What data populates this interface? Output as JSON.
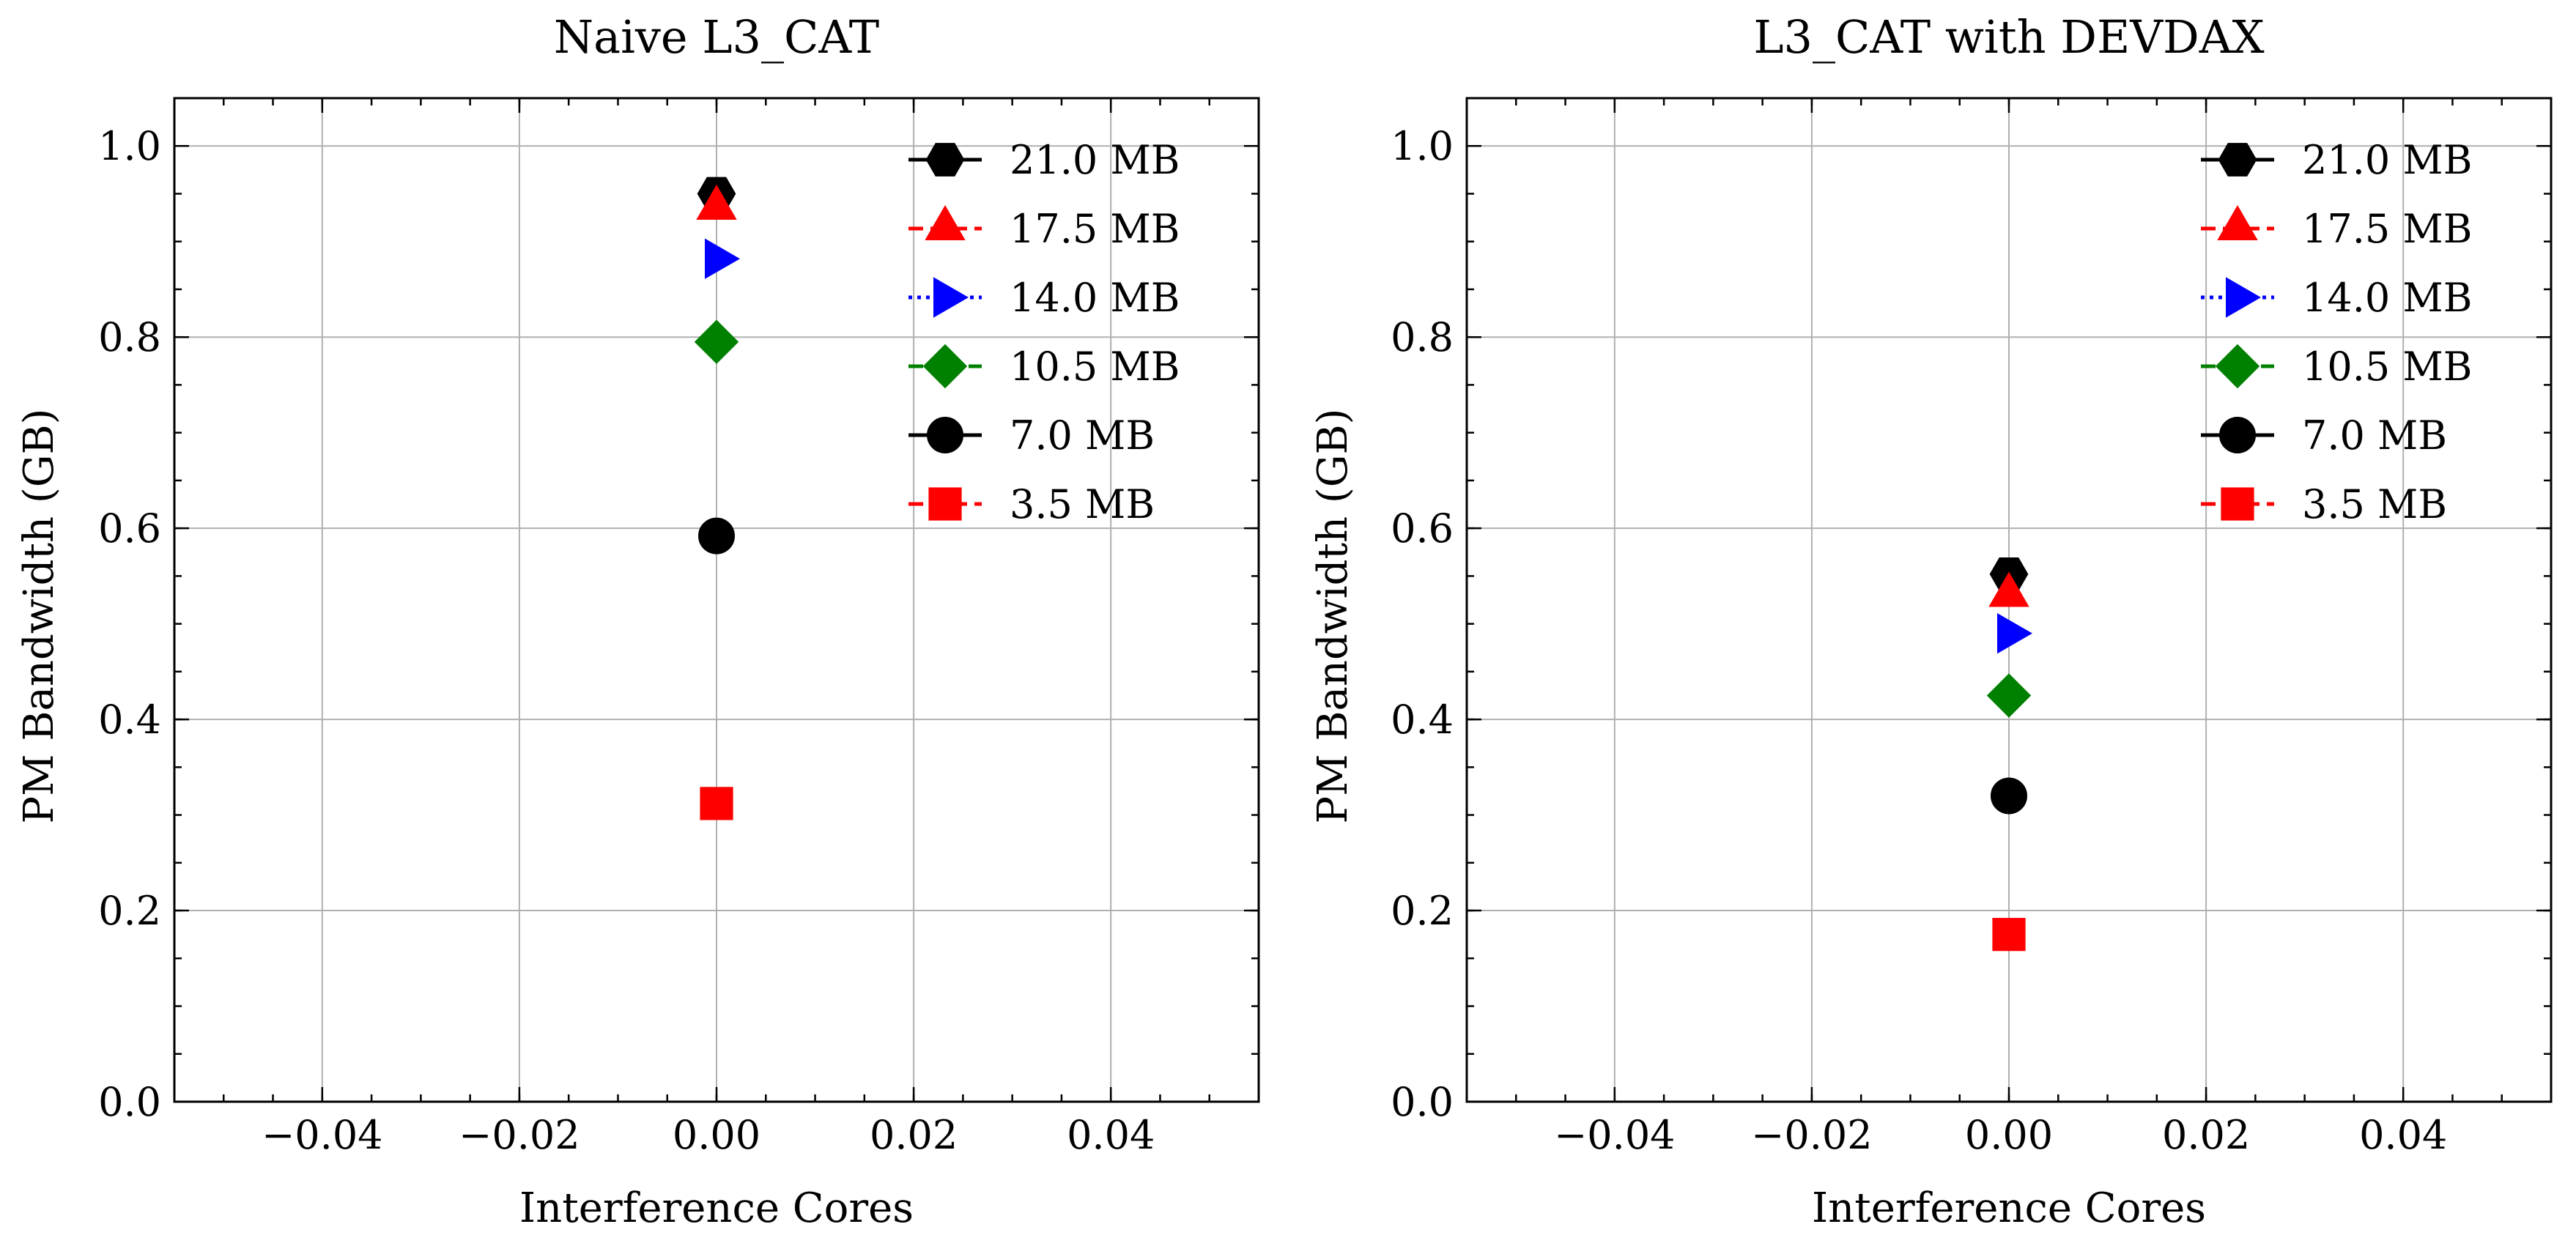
{
  "figure": {
    "panels": [
      {
        "title": "Naive L3_CAT"
      },
      {
        "title": "L3_CAT with DEVDAX"
      }
    ]
  },
  "chart_data": [
    {
      "type": "scatter",
      "title": "Naive L3_CAT",
      "xlabel": "Interference Cores",
      "ylabel": "PM Bandwidth (GB)",
      "xlim": [
        -0.055,
        0.055
      ],
      "ylim": [
        0.0,
        1.05
      ],
      "xticks": [
        -0.04,
        -0.02,
        0.0,
        0.02,
        0.04
      ],
      "xtick_labels": [
        "−0.04",
        "−0.02",
        "0.00",
        "0.02",
        "0.04"
      ],
      "yticks": [
        0.0,
        0.2,
        0.4,
        0.6,
        0.8,
        1.0
      ],
      "ytick_labels": [
        "0.0",
        "0.2",
        "0.4",
        "0.6",
        "0.8",
        "1.0"
      ],
      "grid": true,
      "legend_position": "top-right",
      "series": [
        {
          "name": "21.0 MB",
          "x": [
            0
          ],
          "y": [
            0.95
          ],
          "color": "#000000",
          "marker": "hexagon",
          "line_style": "solid"
        },
        {
          "name": "17.5 MB",
          "x": [
            0
          ],
          "y": [
            0.935
          ],
          "color": "#ff0000",
          "marker": "triangle-up",
          "line_style": "dashed"
        },
        {
          "name": "14.0 MB",
          "x": [
            0
          ],
          "y": [
            0.882
          ],
          "color": "#0000ff",
          "marker": "triangle-right",
          "line_style": "dotted"
        },
        {
          "name": "10.5 MB",
          "x": [
            0
          ],
          "y": [
            0.795
          ],
          "color": "#008000",
          "marker": "diamond",
          "line_style": "dashdot"
        },
        {
          "name": "7.0 MB",
          "x": [
            0
          ],
          "y": [
            0.592
          ],
          "color": "#000000",
          "marker": "circle",
          "line_style": "solid"
        },
        {
          "name": "3.5 MB",
          "x": [
            0
          ],
          "y": [
            0.312
          ],
          "color": "#ff0000",
          "marker": "square",
          "line_style": "dashed"
        }
      ]
    },
    {
      "type": "scatter",
      "title": "L3_CAT with DEVDAX",
      "xlabel": "Interference Cores",
      "ylabel": "PM Bandwidth (GB)",
      "xlim": [
        -0.055,
        0.055
      ],
      "ylim": [
        0.0,
        1.05
      ],
      "xticks": [
        -0.04,
        -0.02,
        0.0,
        0.02,
        0.04
      ],
      "xtick_labels": [
        "−0.04",
        "−0.02",
        "0.00",
        "0.02",
        "0.04"
      ],
      "yticks": [
        0.0,
        0.2,
        0.4,
        0.6,
        0.8,
        1.0
      ],
      "ytick_labels": [
        "0.0",
        "0.2",
        "0.4",
        "0.6",
        "0.8",
        "1.0"
      ],
      "grid": true,
      "legend_position": "top-right",
      "series": [
        {
          "name": "21.0 MB",
          "x": [
            0
          ],
          "y": [
            0.552
          ],
          "color": "#000000",
          "marker": "hexagon",
          "line_style": "solid"
        },
        {
          "name": "17.5 MB",
          "x": [
            0
          ],
          "y": [
            0.53
          ],
          "color": "#ff0000",
          "marker": "triangle-up",
          "line_style": "dashed"
        },
        {
          "name": "14.0 MB",
          "x": [
            0
          ],
          "y": [
            0.49
          ],
          "color": "#0000ff",
          "marker": "triangle-right",
          "line_style": "dotted"
        },
        {
          "name": "10.5 MB",
          "x": [
            0
          ],
          "y": [
            0.425
          ],
          "color": "#008000",
          "marker": "diamond",
          "line_style": "dashdot"
        },
        {
          "name": "7.0 MB",
          "x": [
            0
          ],
          "y": [
            0.32
          ],
          "color": "#000000",
          "marker": "circle",
          "line_style": "solid"
        },
        {
          "name": "3.5 MB",
          "x": [
            0
          ],
          "y": [
            0.175
          ],
          "color": "#ff0000",
          "marker": "square",
          "line_style": "dashed"
        }
      ]
    }
  ]
}
